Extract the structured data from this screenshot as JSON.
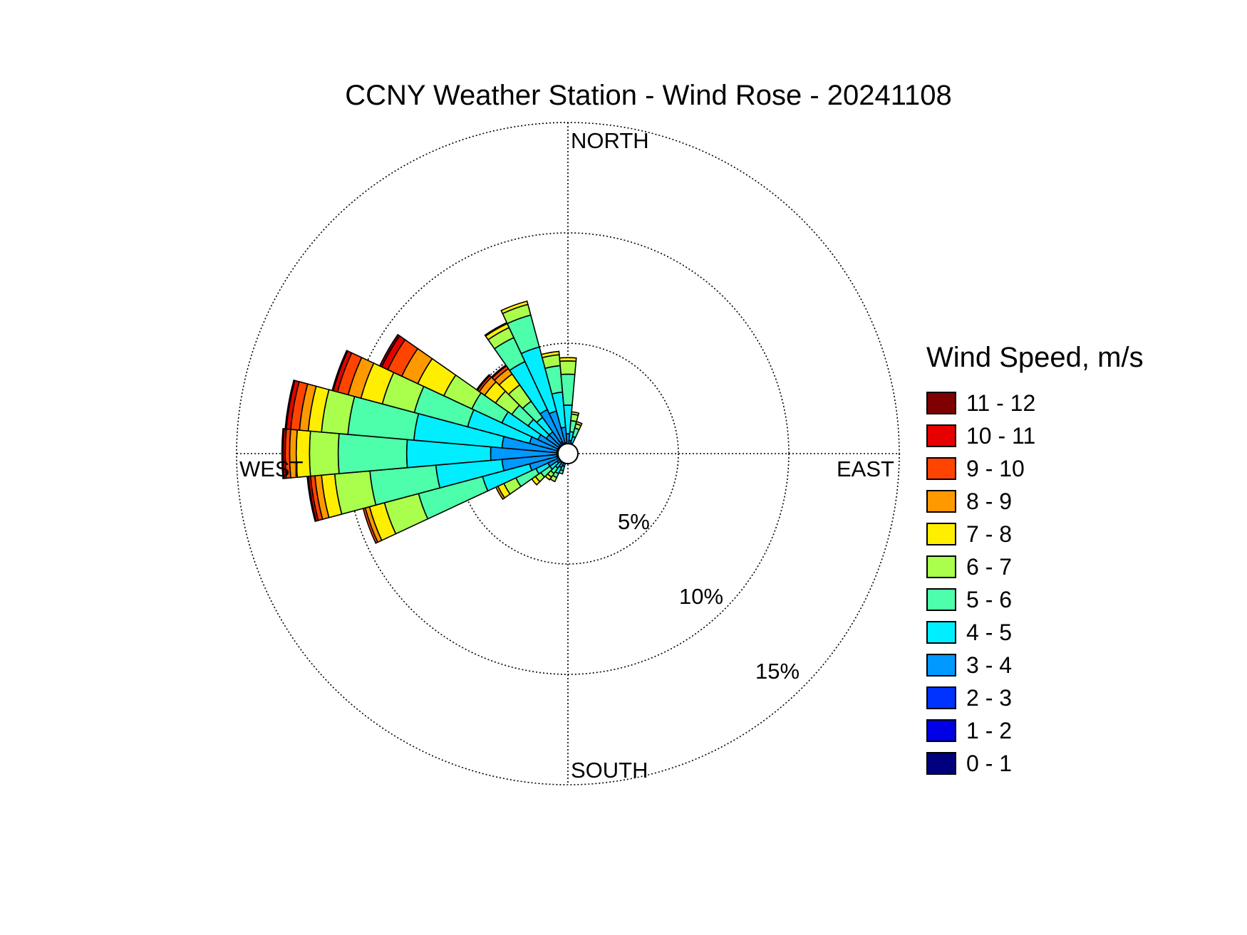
{
  "chart_data": {
    "type": "wind_rose",
    "title": "CCNY Weather Station - Wind Rose - 20241108",
    "legend_title": "Wind Speed, m/s",
    "direction_labels": {
      "north": "NORTH",
      "east": "EAST",
      "south": "SOUTH",
      "west": "WEST"
    },
    "ring_values": [
      5,
      10,
      15
    ],
    "ring_labels": [
      "5%",
      "10%",
      "15%"
    ],
    "rmax": 15,
    "grid": "dotted",
    "legend_position": "right",
    "speed_bins": [
      {
        "label": "0 - 1",
        "color": "#00007f"
      },
      {
        "label": "1 - 2",
        "color": "#0000e6"
      },
      {
        "label": "2 - 3",
        "color": "#0033ff"
      },
      {
        "label": "3 - 4",
        "color": "#0099ff"
      },
      {
        "label": "4 - 5",
        "color": "#00eeff"
      },
      {
        "label": "5 - 6",
        "color": "#4dffaa"
      },
      {
        "label": "6 - 7",
        "color": "#aaff4d"
      },
      {
        "label": "7 - 8",
        "color": "#ffee00"
      },
      {
        "label": "8 - 9",
        "color": "#ff9900"
      },
      {
        "label": "9 - 10",
        "color": "#ff4400"
      },
      {
        "label": "10 - 11",
        "color": "#e60000"
      },
      {
        "label": "11 - 12",
        "color": "#7f0000"
      }
    ],
    "sector_width_deg": 10,
    "sectors": [
      {
        "dir": 110,
        "cum": [
          0.1,
          0.25,
          0.4,
          0.6,
          0.8,
          0.95
        ]
      },
      {
        "dir": 120,
        "cum": [
          0.1,
          0.25,
          0.4,
          0.7,
          1.0,
          1.2,
          1.4
        ]
      },
      {
        "dir": 130,
        "cum": [
          0.1,
          0.2,
          0.3,
          0.5,
          0.8,
          1.1,
          1.3,
          1.45
        ]
      },
      {
        "dir": 140,
        "cum": [
          0.1,
          0.2,
          0.3,
          0.6,
          1.0,
          1.5,
          1.8,
          2.0
        ]
      },
      {
        "dir": 150,
        "cum": [
          0.1,
          0.2,
          0.4,
          1.0,
          1.6,
          2.6,
          3.2,
          3.5,
          3.6
        ]
      },
      {
        "dir": 160,
        "cum": [
          0.1,
          0.2,
          0.5,
          1.8,
          4.0,
          7.0,
          8.6,
          9.3,
          9.5,
          9.6
        ]
      },
      {
        "dir": 170,
        "cum": [
          0.1,
          0.2,
          0.5,
          3.0,
          6.0,
          9.0,
          10.6,
          11.2,
          11.5,
          11.7,
          11.8,
          11.85
        ]
      },
      {
        "dir": 180,
        "cum": [
          0.1,
          0.2,
          0.5,
          3.5,
          7.3,
          10.4,
          11.7,
          12.3,
          12.6,
          12.8,
          12.9,
          12.95
        ]
      },
      {
        "dir": 190,
        "cum": [
          0.1,
          0.2,
          0.5,
          3.0,
          7.0,
          10.0,
          11.2,
          11.8,
          12.2,
          12.6,
          12.8,
          12.85
        ]
      },
      {
        "dir": 200,
        "cum": [
          0.1,
          0.2,
          0.5,
          1.8,
          4.7,
          7.2,
          8.7,
          9.7,
          10.3,
          10.8,
          11.0,
          11.05
        ]
      },
      {
        "dir": 210,
        "cum": [
          0.1,
          0.2,
          0.5,
          1.5,
          3.3,
          4.8,
          6.2,
          7.5,
          8.3,
          9.0,
          9.3,
          9.4
        ]
      },
      {
        "dir": 220,
        "cum": [
          0.1,
          0.2,
          0.5,
          1.2,
          2.2,
          3.1,
          4.0,
          4.6,
          4.9,
          5.0,
          5.05
        ]
      },
      {
        "dir": 230,
        "cum": [
          0.1,
          0.2,
          0.5,
          1.2,
          2.0,
          2.9,
          3.8,
          4.4,
          4.7,
          4.85,
          4.9
        ]
      },
      {
        "dir": 240,
        "cum": [
          0.1,
          0.2,
          0.6,
          2.2,
          4.6,
          5.8,
          6.3,
          6.5,
          6.55
        ]
      },
      {
        "dir": 250,
        "cum": [
          0.1,
          0.2,
          0.5,
          2.0,
          5.0,
          6.5,
          7.0,
          7.15
        ]
      },
      {
        "dir": 260,
        "cum": [
          0.1,
          0.2,
          0.5,
          1.2,
          2.8,
          4.0,
          4.5,
          4.65
        ]
      },
      {
        "dir": 270,
        "cum": [
          0.1,
          0.2,
          0.4,
          0.9,
          2.2,
          3.6,
          4.2,
          4.35
        ]
      },
      {
        "dir": 280,
        "cum": [
          0.1,
          0.2,
          0.3,
          0.6,
          1.0,
          1.5,
          1.8,
          1.9
        ]
      },
      {
        "dir": 290,
        "cum": [
          0.1,
          0.2,
          0.3,
          0.5,
          0.8,
          1.2,
          1.4,
          1.5
        ]
      }
    ]
  }
}
